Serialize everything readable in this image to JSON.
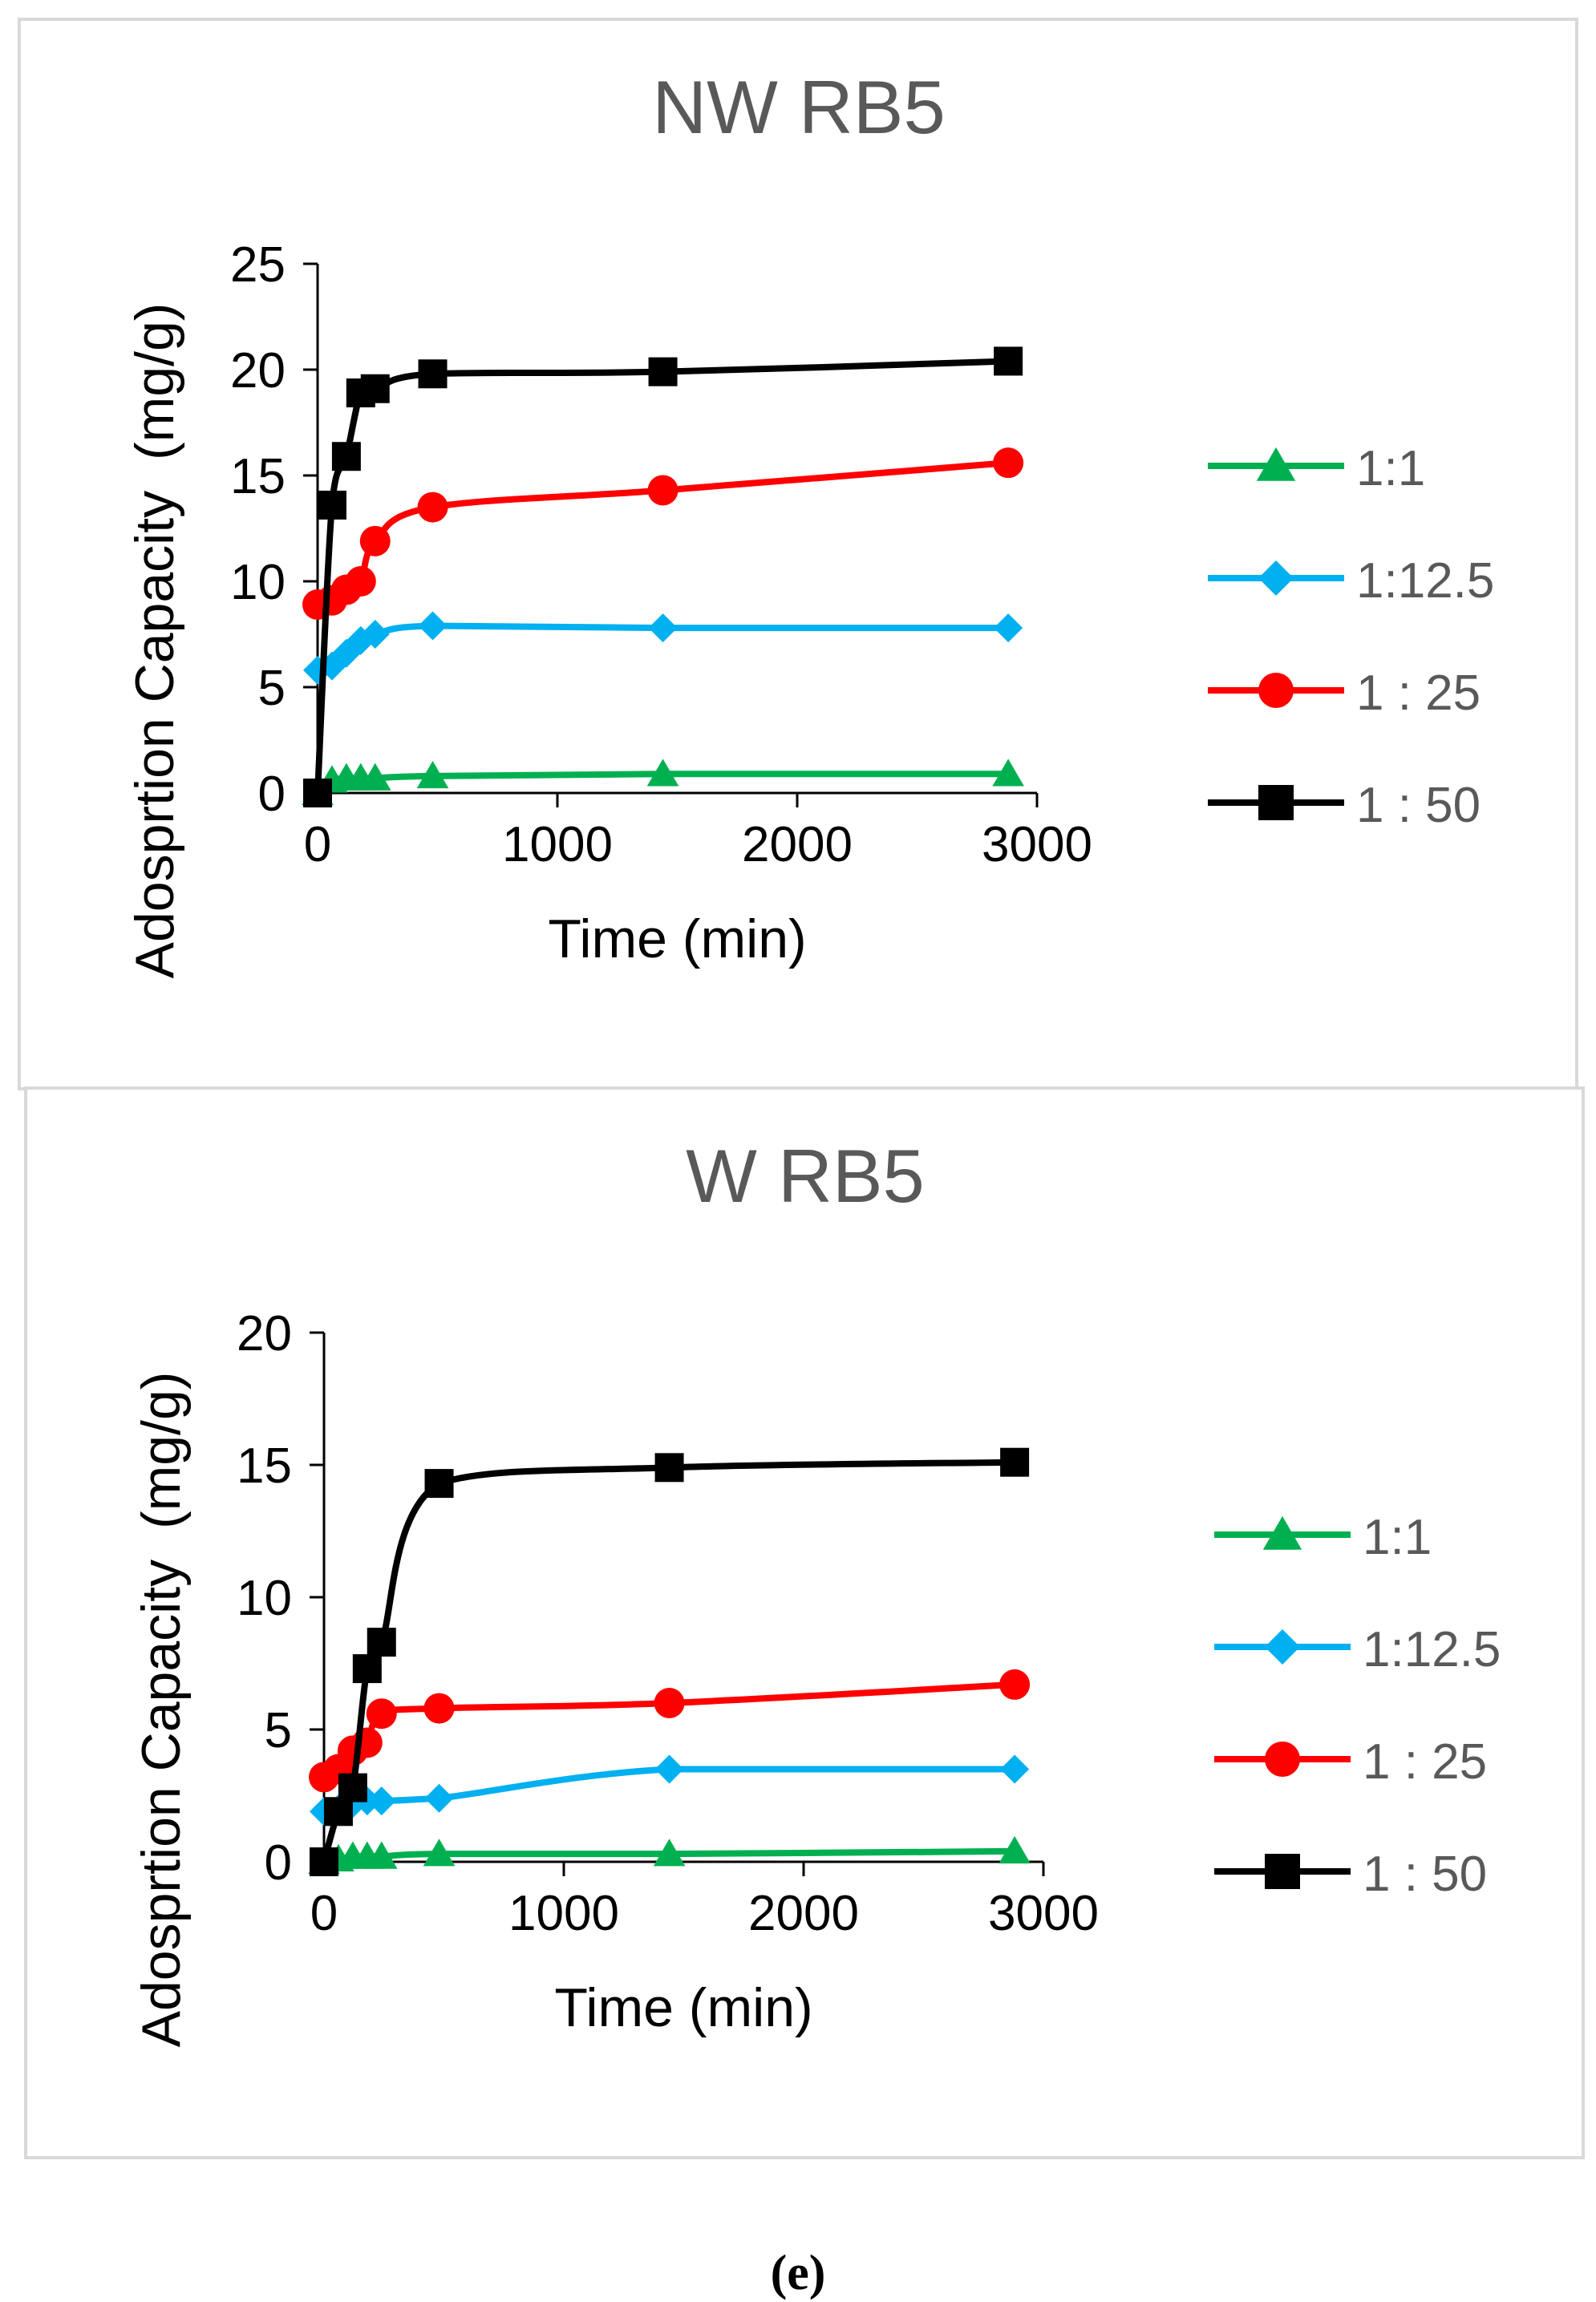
{
  "caption": "(e)",
  "chart_data": [
    {
      "type": "line",
      "title": "NW RB5",
      "xlabel": "Time (min)",
      "ylabel": "Adosprtion Capacity  (mg/g)",
      "xlim": [
        0,
        3000
      ],
      "ylim": [
        0,
        25
      ],
      "x_ticks": [
        0,
        1000,
        2000,
        3000
      ],
      "y_ticks": [
        0,
        5,
        10,
        15,
        20,
        25
      ],
      "legend_position": "right",
      "series": [
        {
          "name": "1:1",
          "color": "#00b050",
          "marker": "triangle",
          "x": [
            0,
            60,
            120,
            180,
            240,
            480,
            1440,
            2880
          ],
          "y": [
            0,
            0.6,
            0.7,
            0.7,
            0.7,
            0.8,
            0.9,
            0.9
          ]
        },
        {
          "name": "1:12.5",
          "color": "#00b0f0",
          "marker": "diamond",
          "x": [
            0,
            60,
            120,
            180,
            240,
            480,
            1440,
            2880
          ],
          "y": [
            5.8,
            6.0,
            6.6,
            7.2,
            7.5,
            7.9,
            7.8,
            7.8
          ]
        },
        {
          "name": "1 : 25",
          "color": "#ff0000",
          "marker": "circle",
          "x": [
            0,
            60,
            120,
            180,
            240,
            480,
            1440,
            2880
          ],
          "y": [
            8.9,
            9.1,
            9.6,
            10.0,
            11.9,
            13.5,
            14.3,
            15.6
          ]
        },
        {
          "name": "1 : 50",
          "color": "#000000",
          "marker": "square",
          "x": [
            0,
            60,
            120,
            180,
            240,
            480,
            1440,
            2880
          ],
          "y": [
            0,
            13.6,
            15.9,
            18.9,
            19.1,
            19.8,
            19.9,
            20.4
          ]
        }
      ]
    },
    {
      "type": "line",
      "title": "W RB5",
      "xlabel": "Time (min)",
      "ylabel": "Adosprtion Capacity  (mg/g)",
      "xlim": [
        0,
        3000
      ],
      "ylim": [
        0,
        20
      ],
      "x_ticks": [
        0,
        1000,
        2000,
        3000
      ],
      "y_ticks": [
        0,
        5,
        10,
        15,
        20
      ],
      "legend_position": "right",
      "series": [
        {
          "name": "1:1",
          "color": "#00b050",
          "marker": "triangle",
          "x": [
            0,
            60,
            120,
            180,
            240,
            480,
            1440,
            2880
          ],
          "y": [
            0,
            0.1,
            0.2,
            0.2,
            0.2,
            0.3,
            0.3,
            0.4
          ]
        },
        {
          "name": "1:12.5",
          "color": "#00b0f0",
          "marker": "diamond",
          "x": [
            0,
            60,
            120,
            180,
            240,
            480,
            1440,
            2880
          ],
          "y": [
            1.9,
            2.0,
            2.2,
            2.3,
            2.3,
            2.4,
            3.5,
            3.5
          ]
        },
        {
          "name": "1 : 25",
          "color": "#ff0000",
          "marker": "circle",
          "x": [
            0,
            60,
            120,
            180,
            240,
            480,
            1440,
            2880
          ],
          "y": [
            3.2,
            3.5,
            4.2,
            4.5,
            5.6,
            5.8,
            6.0,
            6.7
          ]
        },
        {
          "name": "1 : 50",
          "color": "#000000",
          "marker": "square",
          "x": [
            0,
            60,
            120,
            180,
            240,
            480,
            1440,
            2880
          ],
          "y": [
            0,
            1.9,
            2.8,
            7.3,
            8.3,
            14.3,
            14.9,
            15.1
          ]
        }
      ]
    }
  ]
}
